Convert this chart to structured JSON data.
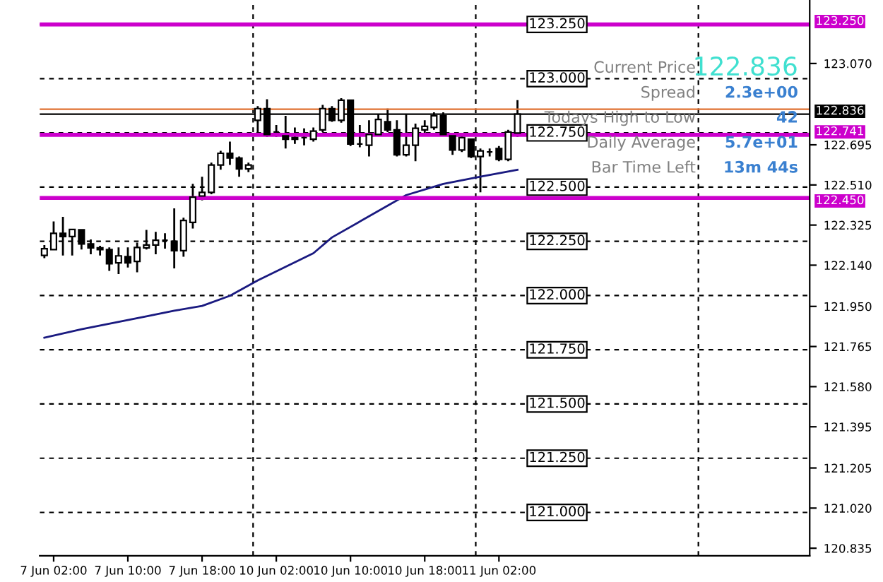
{
  "chart_data": {
    "type": "candlestick",
    "categories": [
      null,
      "7 Jun 02:00",
      null,
      null,
      null,
      null,
      null,
      null,
      null,
      "7 Jun 10:00",
      null,
      null,
      null,
      null,
      null,
      null,
      null,
      "7 Jun 18:00",
      null,
      null,
      null,
      null,
      null,
      null,
      null,
      "10 Jun 02:00",
      null,
      null,
      null,
      null,
      null,
      null,
      null,
      "10 Jun 10:00",
      null,
      null,
      null,
      null,
      null,
      null,
      null,
      "10 Jun 18:00",
      null,
      null,
      null,
      null,
      null,
      null,
      null,
      "11 Jun 02:00",
      null,
      null,
      null,
      null,
      null,
      null,
      null,
      null,
      null,
      null,
      null,
      null,
      null,
      null,
      null,
      null,
      null,
      null,
      null,
      null,
      null,
      null,
      null,
      null,
      null,
      null,
      null,
      null,
      null,
      null,
      null,
      null,
      null
    ],
    "ohlc": [
      [
        122.185,
        122.233,
        122.172,
        122.216
      ],
      [
        122.212,
        122.342,
        122.212,
        122.287
      ],
      [
        122.287,
        122.363,
        122.185,
        122.272
      ],
      [
        122.272,
        122.305,
        122.185,
        122.305
      ],
      [
        122.303,
        122.303,
        122.212,
        122.238
      ],
      [
        122.238,
        122.259,
        122.19,
        122.22
      ],
      [
        122.22,
        122.229,
        122.185,
        122.212
      ],
      [
        122.212,
        122.222,
        122.114,
        122.147
      ],
      [
        122.151,
        122.222,
        122.099,
        122.183
      ],
      [
        122.179,
        122.222,
        122.129,
        122.151
      ],
      [
        122.157,
        122.244,
        122.107,
        122.222
      ],
      [
        122.22,
        122.303,
        122.212,
        122.233
      ],
      [
        122.233,
        122.294,
        122.19,
        122.255
      ],
      [
        122.255,
        122.287,
        122.216,
        122.255
      ],
      [
        122.25,
        122.402,
        122.125,
        122.207
      ],
      [
        122.207,
        122.359,
        122.179,
        122.346
      ],
      [
        122.337,
        122.515,
        122.309,
        122.454
      ],
      [
        122.459,
        122.548,
        122.439,
        122.476
      ],
      [
        122.476,
        122.613,
        122.467,
        122.602
      ],
      [
        122.602,
        122.667,
        122.58,
        122.656
      ],
      [
        122.656,
        122.71,
        122.602,
        122.634
      ],
      [
        122.634,
        122.641,
        122.548,
        122.584
      ],
      [
        122.584,
        122.613,
        122.569,
        122.602
      ],
      [
        122.808,
        122.873,
        122.743,
        122.862
      ],
      [
        122.862,
        122.905,
        122.732,
        122.743
      ],
      [
        122.754,
        122.786,
        122.732,
        122.754
      ],
      [
        122.736,
        122.829,
        122.678,
        122.721
      ],
      [
        122.721,
        122.775,
        122.699,
        122.728
      ],
      [
        122.728,
        122.771,
        122.693,
        122.728
      ],
      [
        122.721,
        122.775,
        122.71,
        122.758
      ],
      [
        122.764,
        122.879,
        122.754,
        122.862
      ],
      [
        122.862,
        122.873,
        122.801,
        122.808
      ],
      [
        122.808,
        122.91,
        122.797,
        122.901
      ],
      [
        122.901,
        122.901,
        122.689,
        122.699
      ],
      [
        122.699,
        122.786,
        122.684,
        122.699
      ],
      [
        122.693,
        122.808,
        122.641,
        122.743
      ],
      [
        122.743,
        122.836,
        122.736,
        122.812
      ],
      [
        122.801,
        122.862,
        122.754,
        122.764
      ],
      [
        122.764,
        122.808,
        122.641,
        122.649
      ],
      [
        122.649,
        122.836,
        122.641,
        122.693
      ],
      [
        122.693,
        122.793,
        122.619,
        122.771
      ],
      [
        122.764,
        122.808,
        122.743,
        122.78
      ],
      [
        122.775,
        122.845,
        122.764,
        122.829
      ],
      [
        122.829,
        122.845,
        122.736,
        122.743
      ],
      [
        122.736,
        122.743,
        122.649,
        122.671
      ],
      [
        122.671,
        122.736,
        122.662,
        122.728
      ],
      [
        122.721,
        122.721,
        122.634,
        122.641
      ],
      [
        122.641,
        122.678,
        122.476,
        122.667
      ],
      [
        122.662,
        122.678,
        122.641,
        122.662
      ],
      [
        122.678,
        122.689,
        122.619,
        122.628
      ],
      [
        122.628,
        122.764,
        122.619,
        122.754
      ],
      [
        122.749,
        122.901,
        122.732,
        122.836
      ],
      null,
      null,
      null,
      null,
      null,
      null,
      null,
      null,
      null,
      null,
      null,
      null,
      null,
      null,
      null,
      null,
      null,
      null,
      null,
      null,
      null,
      null,
      null,
      null,
      null,
      null,
      null,
      null,
      null,
      null,
      null
    ],
    "series": [
      {
        "type": "line",
        "color": "#1a1a80",
        "values": [
          121.806,
          null,
          null,
          null,
          121.845,
          null,
          null,
          null,
          null,
          null,
          null,
          121.904,
          null,
          null,
          121.93,
          null,
          null,
          121.952,
          null,
          null,
          121.999,
          null,
          null,
          122.07,
          null,
          null,
          null,
          null,
          null,
          122.195,
          null,
          122.268,
          null,
          null,
          null,
          null,
          null,
          null,
          null,
          122.463,
          null,
          null,
          null,
          122.515,
          null,
          null,
          null,
          122.548,
          null,
          null,
          null,
          122.58,
          null,
          null,
          null,
          null,
          null,
          null,
          null,
          null,
          null,
          null,
          null,
          null,
          null,
          null,
          null,
          null,
          null,
          null,
          null,
          null,
          null,
          null,
          null,
          null,
          null,
          null,
          null,
          null,
          null,
          null,
          null
        ]
      }
    ],
    "ylim": [
      120.8,
      123.36
    ],
    "yticks": [
      {
        "value": 123.07,
        "label": "123.070"
      },
      122.695,
      {
        "value": 122.51,
        "label": "122.510"
      },
      122.325,
      {
        "value": 122.14,
        "label": "122.140"
      },
      {
        "value": 121.95,
        "label": "121.950"
      },
      121.765,
      {
        "value": 121.58,
        "label": "121.580"
      },
      121.395,
      121.205,
      {
        "value": 121.02,
        "label": "121.020"
      },
      120.835
    ],
    "ref_lines": [
      {
        "axis": "y",
        "value": 123.25,
        "label": "123.250",
        "color": "#000000",
        "line_style": "dashed"
      },
      {
        "axis": "y",
        "value": 123.0,
        "label": "123.000",
        "color": "#000000",
        "line_style": "dashed"
      },
      {
        "axis": "y",
        "value": 122.75,
        "label": "122.750",
        "color": "#000000",
        "line_style": "dashed"
      },
      {
        "axis": "y",
        "value": 122.5,
        "label": "122.500",
        "color": "#000000",
        "line_style": "dashed"
      },
      {
        "axis": "y",
        "value": 122.25,
        "label": "122.250",
        "color": "#000000",
        "line_style": "dashed"
      },
      {
        "axis": "y",
        "value": 122.0,
        "label": "122.000",
        "color": "#000000",
        "line_style": "dashed"
      },
      {
        "axis": "y",
        "value": 121.75,
        "label": "121.750",
        "color": "#000000",
        "line_style": "dashed"
      },
      {
        "axis": "y",
        "value": 121.5,
        "label": "121.500",
        "color": "#000000",
        "line_style": "dashed"
      },
      {
        "axis": "y",
        "value": 121.25,
        "label": "121.250",
        "color": "#000000",
        "line_style": "dashed"
      },
      {
        "axis": "y",
        "value": 121.0,
        "label": "121.000",
        "color": "#000000",
        "line_style": "dashed"
      },
      {
        "axis": "y",
        "value": 123.25,
        "label": "123.250",
        "color": "#cc00cc",
        "line_style": "solid"
      },
      {
        "axis": "y",
        "value": 122.741,
        "label": "122.741",
        "color": "#cc00cc",
        "line_style": "solid"
      },
      {
        "axis": "y",
        "value": 122.45,
        "label": "122.450",
        "color": "#cc00cc",
        "line_style": "solid"
      },
      {
        "axis": "y",
        "value": 122.859,
        "color": "#e07030",
        "line_style": "solid"
      },
      {
        "axis": "y",
        "value": 122.836,
        "label": "122.836",
        "color": "#000000",
        "line_style": "solid"
      }
    ],
    "annotations": [
      "Current Price",
      "122.836",
      "Spread",
      "2.3e+00",
      "Todays High to Low",
      "42",
      "Daily Average",
      "5.7e+01",
      "Bar Time Left",
      "13m 44s"
    ],
    "grid": false,
    "legend": false
  }
}
